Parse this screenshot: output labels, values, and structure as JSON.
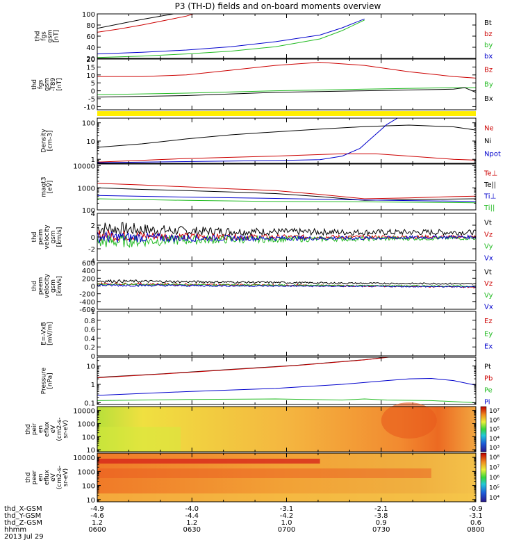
{
  "title": "P3 (TH-D) fields and on-board moments overview",
  "chart_data": [
    {
      "type": "line",
      "ylabel": [
        "thd",
        "fgs",
        "gsm",
        "[nT]"
      ],
      "ylim": [
        20,
        100
      ],
      "yticks": [
        20,
        40,
        60,
        80,
        100
      ],
      "legend": [
        {
          "label": "Bt",
          "color": "#000000"
        },
        {
          "label": "bz",
          "color": "#cc0000"
        },
        {
          "label": "by",
          "color": "#22bb22"
        },
        {
          "label": "bx",
          "color": "#0000cc"
        }
      ],
      "series": [
        {
          "name": "Bt",
          "color": "#000000",
          "x": [
            0,
            10,
            20,
            30,
            40
          ],
          "y": [
            74,
            82,
            90,
            97,
            104
          ]
        },
        {
          "name": "bz",
          "color": "#cc0000",
          "x": [
            0,
            10,
            20,
            30,
            40,
            44
          ],
          "y": [
            67,
            73,
            80,
            88,
            96,
            101
          ]
        },
        {
          "name": "by",
          "color": "#22bb22",
          "x": [
            0,
            20,
            40,
            60,
            80,
            100,
            110,
            120
          ],
          "y": [
            21.5,
            24,
            28,
            33,
            41,
            55,
            70,
            89
          ]
        },
        {
          "name": "bx",
          "color": "#0000cc",
          "x": [
            0,
            20,
            40,
            60,
            80,
            100,
            110,
            120
          ],
          "y": [
            28,
            31,
            35,
            41,
            50,
            62,
            75,
            91
          ]
        }
      ]
    },
    {
      "type": "line",
      "ylabel": [
        "thd",
        "fgs",
        "gsm",
        "-T89",
        "[nT]"
      ],
      "ylim": [
        -12,
        20
      ],
      "yticks": [
        -10,
        -5,
        0,
        5,
        10,
        15,
        20
      ],
      "legend": [
        {
          "label": "Bz",
          "color": "#cc0000"
        },
        {
          "label": "By",
          "color": "#22bb22"
        },
        {
          "label": "Bx",
          "color": "#000000"
        }
      ],
      "series": [
        {
          "name": "Bz",
          "color": "#cc0000",
          "x": [
            0,
            20,
            40,
            60,
            80,
            100,
            120,
            140,
            160,
            170
          ],
          "y": [
            9,
            9,
            10,
            13,
            16,
            18,
            16,
            12,
            9,
            8
          ]
        },
        {
          "name": "By",
          "color": "#22bb22",
          "x": [
            0,
            40,
            80,
            120,
            160,
            170
          ],
          "y": [
            -2.5,
            -1.5,
            0,
            1,
            2,
            2
          ]
        },
        {
          "name": "Bx",
          "color": "#000000",
          "x": [
            0,
            40,
            80,
            120,
            160,
            165,
            170
          ],
          "y": [
            -4,
            -3,
            -1,
            0,
            1,
            2,
            -1
          ]
        }
      ]
    },
    {
      "type": "line",
      "log_scale": true,
      "ylabel": [
        "Density",
        "[cm-3]"
      ],
      "ylim": [
        0.6,
        180
      ],
      "yticks": [
        1,
        10,
        100
      ],
      "legend": [
        {
          "label": "Ne",
          "color": "#cc0000"
        },
        {
          "label": "Ni",
          "color": "#000000"
        },
        {
          "label": "Npot",
          "color": "#0000cc"
        }
      ],
      "series": [
        {
          "name": "Ne",
          "color": "#cc0000",
          "x": [
            0,
            40,
            80,
            110,
            125,
            140,
            160,
            170
          ],
          "y": [
            0.7,
            1.1,
            1.5,
            2.0,
            2.0,
            1.5,
            1.0,
            0.9
          ]
        },
        {
          "name": "Ni",
          "color": "#000000",
          "x": [
            0,
            20,
            40,
            60,
            80,
            100,
            120,
            140,
            160,
            170
          ],
          "y": [
            4.5,
            7,
            13,
            22,
            32,
            45,
            62,
            75,
            60,
            40
          ]
        },
        {
          "name": "Npot",
          "color": "#0000cc",
          "x": [
            0,
            40,
            80,
            100,
            110,
            118,
            124,
            130,
            136
          ],
          "y": [
            0.65,
            0.75,
            0.85,
            0.95,
            1.5,
            4,
            18,
            80,
            220
          ]
        }
      ]
    },
    {
      "type": "line",
      "log_scale": true,
      "ylabel": [
        "magt3",
        "[eV]"
      ],
      "ylim": [
        100,
        12000
      ],
      "yticks": [
        100,
        1000,
        10000
      ],
      "legend": [
        {
          "label": "Te⊥",
          "color": "#cc0000"
        },
        {
          "label": "Te||",
          "color": "#000000"
        },
        {
          "label": "Ti⊥",
          "color": "#0000cc"
        },
        {
          "label": "Ti||",
          "color": "#22bb22"
        }
      ],
      "series": [
        {
          "name": "Te⊥",
          "color": "#cc0000",
          "x": [
            0,
            20,
            40,
            60,
            80,
            100,
            120,
            140,
            160,
            170
          ],
          "y": [
            1600,
            1350,
            1100,
            900,
            750,
            500,
            320,
            350,
            400,
            420
          ]
        },
        {
          "name": "Te||",
          "color": "#000000",
          "x": [
            0,
            20,
            40,
            60,
            80,
            100,
            120,
            140,
            160,
            170
          ],
          "y": [
            1000,
            850,
            750,
            650,
            550,
            400,
            270,
            290,
            310,
            320
          ]
        },
        {
          "name": "Ti⊥",
          "color": "#0000cc",
          "x": [
            0,
            40,
            80,
            120,
            160,
            170
          ],
          "y": [
            450,
            380,
            330,
            280,
            250,
            240
          ]
        },
        {
          "name": "Ti||",
          "color": "#22bb22",
          "x": [
            0,
            40,
            80,
            120,
            160,
            170
          ],
          "y": [
            320,
            270,
            240,
            230,
            215,
            210
          ]
        }
      ]
    },
    {
      "type": "line",
      "noisy": true,
      "ylabel": [
        "thd",
        "peim",
        "velocity",
        "gsm",
        "[km/s]"
      ],
      "ylim": [
        -4,
        4
      ],
      "yticks": [
        -4,
        -2,
        0,
        2,
        4
      ],
      "legend": [
        {
          "label": "Vt",
          "color": "#000000"
        },
        {
          "label": "Vz",
          "color": "#cc0000"
        },
        {
          "label": "Vy",
          "color": "#22bb22"
        },
        {
          "label": "Vx",
          "color": "#0000cc"
        }
      ],
      "series": [
        {
          "name": "Vt",
          "color": "#000000",
          "x": [
            0,
            40,
            80,
            120,
            160,
            170
          ],
          "y": [
            1.5,
            1.0,
            0.9,
            0.8,
            0.8,
            0.8
          ],
          "noise": [
            1.3,
            0.8,
            0.6,
            0.5,
            0.5,
            0.4
          ]
        },
        {
          "name": "Vz",
          "color": "#cc0000",
          "x": [
            0,
            40,
            80,
            120,
            160,
            170
          ],
          "y": [
            0.3,
            0.1,
            0,
            0,
            0,
            0
          ],
          "noise": [
            1.0,
            0.6,
            0.4,
            0.3,
            0.3,
            0.3
          ]
        },
        {
          "name": "Vy",
          "color": "#22bb22",
          "x": [
            0,
            40,
            80,
            120,
            160,
            170
          ],
          "y": [
            -0.8,
            -0.5,
            -0.4,
            -0.3,
            -0.2,
            -0.2
          ],
          "noise": [
            1.2,
            0.8,
            0.5,
            0.4,
            0.3,
            0.3
          ]
        },
        {
          "name": "Vx",
          "color": "#0000cc",
          "x": [
            0,
            40,
            80,
            120,
            160,
            170
          ],
          "y": [
            0,
            -0.2,
            -0.2,
            -0.2,
            0,
            0
          ],
          "noise": [
            1.0,
            0.6,
            0.4,
            0.3,
            0.3,
            0.3
          ]
        }
      ]
    },
    {
      "type": "line",
      "noisy": true,
      "ylabel": [
        "thd",
        "peem",
        "velocity",
        "gsm",
        "[km/s]"
      ],
      "ylim": [
        -600,
        600
      ],
      "yticks": [
        -600,
        -400,
        -200,
        0,
        200,
        400,
        600
      ],
      "legend": [
        {
          "label": "Vt",
          "color": "#000000"
        },
        {
          "label": "Vz",
          "color": "#cc0000"
        },
        {
          "label": "Vy",
          "color": "#22bb22"
        },
        {
          "label": "Vx",
          "color": "#0000cc"
        }
      ],
      "series": [
        {
          "name": "Vt",
          "color": "#000000",
          "x": [
            0,
            40,
            80,
            120,
            160,
            170
          ],
          "y": [
            130,
            110,
            90,
            70,
            60,
            50
          ],
          "noise": [
            40,
            30,
            25,
            20,
            20,
            20
          ]
        },
        {
          "name": "Vz",
          "color": "#cc0000",
          "x": [
            0,
            40,
            80,
            120,
            160,
            170
          ],
          "y": [
            60,
            40,
            20,
            0,
            -20,
            -30
          ],
          "noise": [
            30,
            25,
            20,
            20,
            20,
            20
          ]
        },
        {
          "name": "Vy",
          "color": "#22bb22",
          "x": [
            0,
            40,
            80,
            120,
            160,
            170
          ],
          "y": [
            40,
            30,
            20,
            10,
            0,
            -10
          ],
          "noise": [
            30,
            25,
            20,
            15,
            15,
            15
          ]
        },
        {
          "name": "Vx",
          "color": "#0000cc",
          "x": [
            0,
            40,
            80,
            120,
            160,
            170
          ],
          "y": [
            20,
            10,
            0,
            -10,
            -20,
            -20
          ],
          "noise": [
            30,
            25,
            20,
            15,
            15,
            15
          ]
        }
      ]
    },
    {
      "type": "line",
      "ylabel": [
        "E=-VxB",
        "[mV/m]"
      ],
      "ylim": [
        0,
        1
      ],
      "yticks": [
        0.0,
        0.2,
        0.4,
        0.6,
        0.8,
        1.0
      ],
      "legend": [
        {
          "label": "Ez",
          "color": "#cc0000"
        },
        {
          "label": "Ey",
          "color": "#22bb22"
        },
        {
          "label": "Ex",
          "color": "#0000cc"
        }
      ],
      "series": []
    },
    {
      "type": "line",
      "log_scale": true,
      "ylabel": [
        "Pressure",
        "[nPa]"
      ],
      "ylim": [
        0.08,
        30
      ],
      "yticks": [
        0.1,
        1.0,
        10.0
      ],
      "legend": [
        {
          "label": "Pt",
          "color": "#000000"
        },
        {
          "label": "Pb",
          "color": "#cc0000"
        },
        {
          "label": "Pe",
          "color": "#22bb22"
        },
        {
          "label": "Pi",
          "color": "#0000cc"
        }
      ],
      "series": [
        {
          "name": "Pt",
          "color": "#000000",
          "x": [
            0,
            30,
            60,
            90,
            120,
            132
          ],
          "y": [
            2.4,
            3.8,
            6.5,
            11,
            22,
            32
          ]
        },
        {
          "name": "Pb",
          "color": "#cc0000",
          "x": [
            0,
            30,
            60,
            90,
            120,
            132
          ],
          "y": [
            2.3,
            3.7,
            6.3,
            10.7,
            21.5,
            31
          ]
        },
        {
          "name": "Pe",
          "color": "#22bb22",
          "x": [
            0,
            40,
            80,
            110,
            120,
            130,
            150,
            170
          ],
          "y": [
            0.13,
            0.15,
            0.16,
            0.14,
            0.16,
            0.14,
            0.13,
            0.1
          ]
        },
        {
          "name": "Pi",
          "color": "#0000cc",
          "x": [
            0,
            40,
            80,
            110,
            130,
            140,
            150,
            160,
            170
          ],
          "y": [
            0.25,
            0.4,
            0.6,
            1.0,
            1.6,
            2.0,
            2.1,
            1.6,
            0.9
          ]
        }
      ]
    },
    {
      "type": "heatmap",
      "ylabel": [
        "thd",
        "peir",
        "en",
        "eflux",
        "eV",
        "(cm2-s-",
        "sr-eV)"
      ],
      "log_scale": true,
      "ylim": [
        7,
        20000
      ],
      "yticks": [
        10,
        100,
        1000,
        10000
      ],
      "colorbar_ticks": [
        "10⁷",
        "10⁶",
        "10⁵",
        "10⁴",
        "10³"
      ]
    },
    {
      "type": "heatmap",
      "ylabel": [
        "thd",
        "peer",
        "en",
        "eflux",
        "eV",
        "(cm2-s-",
        "sr-eV)"
      ],
      "log_scale": true,
      "ylim": [
        7,
        20000
      ],
      "yticks": [
        10,
        100,
        1000,
        10000
      ],
      "colorbar_ticks": [
        "10⁸",
        "10⁷",
        "10⁶",
        "10⁵",
        "10⁴"
      ]
    }
  ],
  "x_axis": {
    "labels": [
      "thd_X-GSM",
      "thd_Y-GSM",
      "thd_Z-GSM",
      "hhmm"
    ],
    "date": "2013 Jul 29",
    "columns": [
      {
        "values": [
          "-4.9",
          "-4.6",
          "1.2",
          "0600"
        ]
      },
      {
        "values": [
          "-4.0",
          "-4.4",
          "1.2",
          "0630"
        ]
      },
      {
        "values": [
          "-3.1",
          "-4.2",
          "1.0",
          "0700"
        ]
      },
      {
        "values": [
          "-2.1",
          "-3.8",
          "0.9",
          "0730"
        ]
      },
      {
        "values": [
          "-0.9",
          "-3.1",
          "0.6",
          "0800"
        ]
      }
    ]
  }
}
